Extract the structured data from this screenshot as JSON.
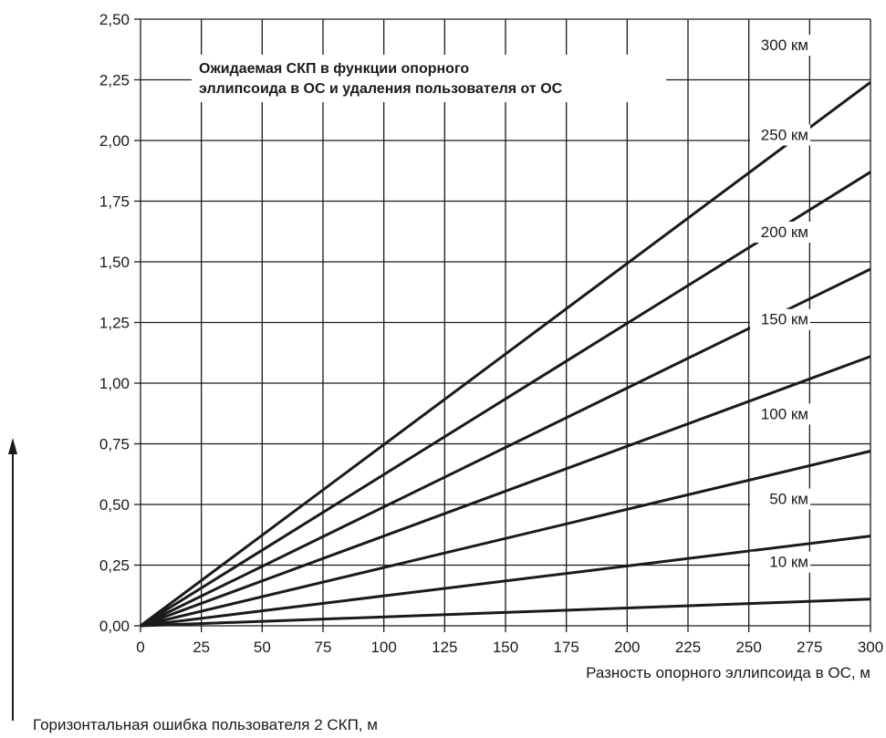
{
  "chart_data": {
    "type": "line",
    "title_lines": [
      "Ожидаемая СКП в функции опорного",
      "эллипсоида в ОС и удаления пользователя от ОС"
    ],
    "xlabel": "Разность опорного эллипсоида в ОС, м",
    "ylabel": "Горизонтальная ошибка пользователя 2 СКП, м",
    "xlim": [
      0,
      300
    ],
    "ylim": [
      0,
      2.5
    ],
    "x_ticks": [
      0,
      25,
      50,
      75,
      100,
      125,
      150,
      175,
      200,
      225,
      250,
      275,
      300
    ],
    "x_tick_labels": [
      "0",
      "25",
      "50",
      "75",
      "100",
      "125",
      "150",
      "175",
      "200",
      "225",
      "250",
      "275",
      "300"
    ],
    "y_ticks": [
      0,
      0.25,
      0.5,
      0.75,
      1.0,
      1.25,
      1.5,
      1.75,
      2.0,
      2.25,
      2.5
    ],
    "y_tick_labels": [
      "0,00",
      "0,25",
      "0,50",
      "0,75",
      "1,00",
      "1,25",
      "1,50",
      "1,75",
      "2,00",
      "2,25",
      "2,50"
    ],
    "grid": true,
    "series": [
      {
        "name": "10 км",
        "x": [
          0,
          300
        ],
        "y": [
          0,
          0.11
        ]
      },
      {
        "name": "50 км",
        "x": [
          0,
          300
        ],
        "y": [
          0,
          0.37
        ]
      },
      {
        "name": "100 км",
        "x": [
          0,
          300
        ],
        "y": [
          0,
          0.72
        ]
      },
      {
        "name": "150 км",
        "x": [
          0,
          300
        ],
        "y": [
          0,
          1.11
        ]
      },
      {
        "name": "200 км",
        "x": [
          0,
          300
        ],
        "y": [
          0,
          1.47
        ]
      },
      {
        "name": "250 км",
        "x": [
          0,
          300
        ],
        "y": [
          0,
          1.87
        ]
      },
      {
        "name": "300 км",
        "x": [
          0,
          300
        ],
        "y": [
          0,
          2.24
        ]
      }
    ]
  }
}
